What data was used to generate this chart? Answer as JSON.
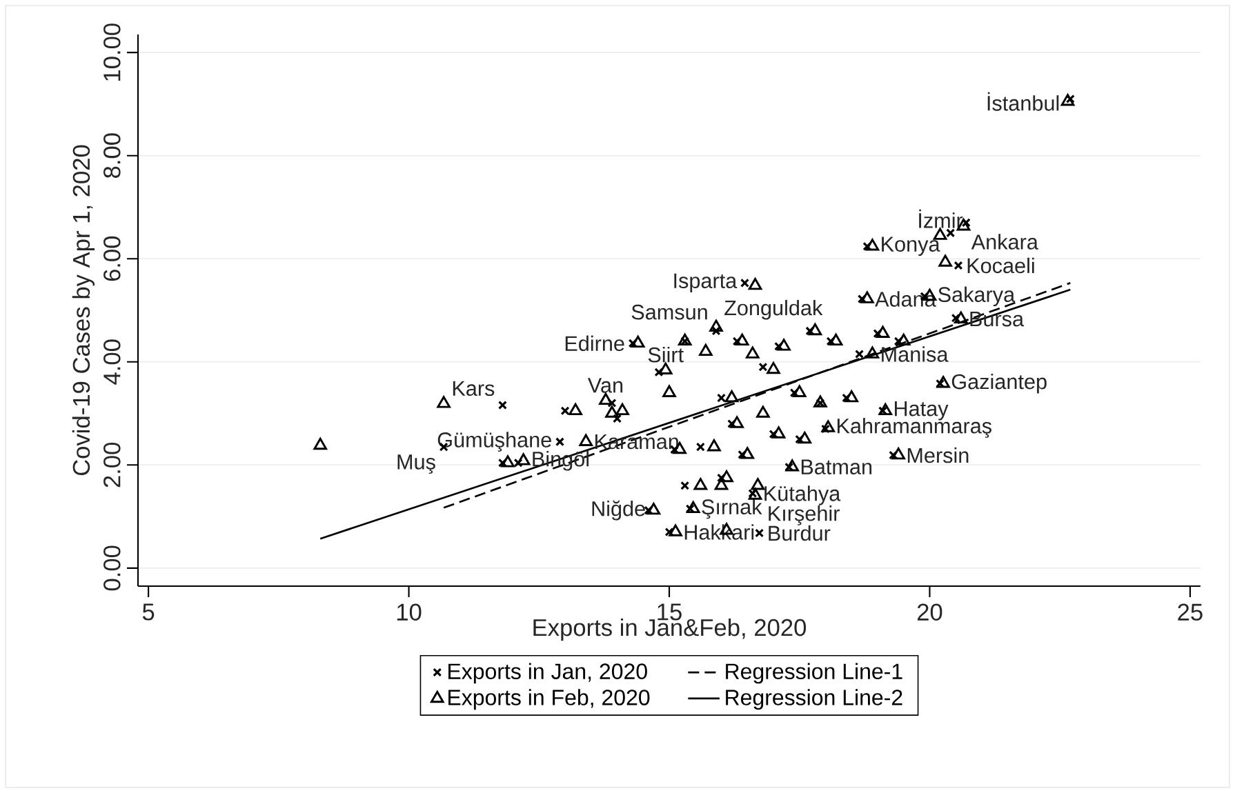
{
  "chart_data": {
    "type": "scatter",
    "xlabel": "Exports in Jan&Feb, 2020",
    "ylabel": "Covid-19 Cases by Apr 1, 2020",
    "xlim": [
      4.8,
      25.2
    ],
    "xticks": [
      5,
      10,
      15,
      20,
      25
    ],
    "ylim": [
      -0.35,
      10.35
    ],
    "yticks": [
      {
        "value": 0,
        "label": "0.00"
      },
      {
        "value": 2,
        "label": "2.00"
      },
      {
        "value": 4,
        "label": "4.00"
      },
      {
        "value": 6,
        "label": "6.00"
      },
      {
        "value": 8,
        "label": "8.00"
      },
      {
        "value": 10,
        "label": "10.00"
      }
    ],
    "grid": "y",
    "legend": "bottom",
    "series": [
      {
        "name": "Exports in Jan, 2020",
        "marker": "cross",
        "color": "#000000",
        "x": [
          10.67,
          11.8,
          11.8,
          12.1,
          12.9,
          13.0,
          13.9,
          14.0,
          14.3,
          14.6,
          14.8,
          15.0,
          15.1,
          15.3,
          15.4,
          15.3,
          15.6,
          15.9,
          16.0,
          16.0,
          16.2,
          16.3,
          16.4,
          16.45,
          16.6,
          16.73,
          16.8,
          17.0,
          17.1,
          17.3,
          17.4,
          17.5,
          17.7,
          17.9,
          18.0,
          18.1,
          18.4,
          18.7,
          18.8,
          18.65,
          19.0,
          19.1,
          19.3,
          19.4,
          19.9,
          20.2,
          20.4,
          20.55,
          20.7,
          20.5,
          22.7
        ],
        "values": [
          2.35,
          3.16,
          2.04,
          2.04,
          2.45,
          3.05,
          3.2,
          2.9,
          4.36,
          1.12,
          3.8,
          0.7,
          2.3,
          4.4,
          1.15,
          1.6,
          2.35,
          4.6,
          1.75,
          3.3,
          2.8,
          4.4,
          2.2,
          5.53,
          1.45,
          0.68,
          3.9,
          2.6,
          4.3,
          1.96,
          3.4,
          2.5,
          4.6,
          3.2,
          2.7,
          4.4,
          3.3,
          5.22,
          6.24,
          4.15,
          4.55,
          3.05,
          2.19,
          4.4,
          5.27,
          3.58,
          6.5,
          5.87,
          6.7,
          4.85,
          9.1
        ]
      },
      {
        "name": "Exports in Feb, 2020",
        "marker": "triangle",
        "color": "#000000",
        "x": [
          8.3,
          10.67,
          11.9,
          12.2,
          13.4,
          13.2,
          13.78,
          13.9,
          14.4,
          14.1,
          14.7,
          14.93,
          15.12,
          15.2,
          15.0,
          15.3,
          15.46,
          15.6,
          15.7,
          15.86,
          15.9,
          16.0,
          16.1,
          16.1,
          16.2,
          16.3,
          16.4,
          16.5,
          16.6,
          16.65,
          16.65,
          16.7,
          16.8,
          17.0,
          17.1,
          17.2,
          17.36,
          17.5,
          17.6,
          17.8,
          17.9,
          18.05,
          18.2,
          18.5,
          18.8,
          18.9,
          18.9,
          19.1,
          19.15,
          19.4,
          19.5,
          20.0,
          20.26,
          20.2,
          20.65,
          20.3,
          20.6,
          22.65
        ],
        "values": [
          2.38,
          3.19,
          2.04,
          2.08,
          2.45,
          3.05,
          3.25,
          3.0,
          4.36,
          3.05,
          1.12,
          3.84,
          0.7,
          2.3,
          3.4,
          4.4,
          1.15,
          1.6,
          4.2,
          2.35,
          4.67,
          1.6,
          0.73,
          1.75,
          3.3,
          2.8,
          4.4,
          2.2,
          4.15,
          5.48,
          1.41,
          1.6,
          3.0,
          3.85,
          2.6,
          4.3,
          1.96,
          3.4,
          2.5,
          4.6,
          3.2,
          2.72,
          4.4,
          3.3,
          5.22,
          6.24,
          4.15,
          4.55,
          3.05,
          2.19,
          4.4,
          5.27,
          3.58,
          6.45,
          6.63,
          5.93,
          4.83,
          9.05
        ]
      },
      {
        "name": "Regression Line-1",
        "type": "line",
        "line_style": "dashed",
        "color": "#000000",
        "x": [
          10.67,
          22.7
        ],
        "values": [
          1.17,
          5.53
        ]
      },
      {
        "name": "Regression Line-2",
        "type": "line",
        "line_style": "solid",
        "color": "#000000",
        "x": [
          8.3,
          22.7
        ],
        "values": [
          0.57,
          5.4
        ]
      }
    ],
    "annotations": [
      {
        "text": "İstanbul",
        "x": 22.65,
        "y": 9.05
      },
      {
        "text": "İzmir",
        "x": 20.2,
        "y": 6.45
      },
      {
        "text": "Ankara",
        "x": 20.65,
        "y": 6.63
      },
      {
        "text": "Konya",
        "x": 18.9,
        "y": 6.24
      },
      {
        "text": "Kocaeli",
        "x": 20.55,
        "y": 5.87
      },
      {
        "text": "Isparta",
        "x": 16.45,
        "y": 5.53
      },
      {
        "text": "Adana",
        "x": 18.8,
        "y": 5.22
      },
      {
        "text": "Sakarya",
        "x": 20.0,
        "y": 5.27
      },
      {
        "text": "Bursa",
        "x": 20.6,
        "y": 4.83
      },
      {
        "text": "Samsun",
        "x": 15.9,
        "y": 4.67
      },
      {
        "text": "Zonguldak",
        "x": 15.9,
        "y": 4.67
      },
      {
        "text": "Edirne",
        "x": 14.3,
        "y": 4.36
      },
      {
        "text": "Manisa",
        "x": 18.9,
        "y": 4.15
      },
      {
        "text": "Gaziantep",
        "x": 20.26,
        "y": 3.58
      },
      {
        "text": "Hatay",
        "x": 19.15,
        "y": 3.05
      },
      {
        "text": "Kahramanmaraş",
        "x": 18.05,
        "y": 2.72
      },
      {
        "text": "Mersin",
        "x": 19.4,
        "y": 2.19
      },
      {
        "text": "Batman",
        "x": 17.36,
        "y": 1.96
      },
      {
        "text": "Kütahya",
        "x": 16.65,
        "y": 1.41
      },
      {
        "text": "Kırşehir",
        "x": 16.73,
        "y": 0.68
      },
      {
        "text": "Burdur",
        "x": 16.73,
        "y": 0.68
      },
      {
        "text": "Hakkari",
        "x": 15.12,
        "y": 0.7
      },
      {
        "text": "Şırnak",
        "x": 15.46,
        "y": 1.15
      },
      {
        "text": "Niğde",
        "x": 14.7,
        "y": 1.12
      },
      {
        "text": "Muş",
        "x": 10.67,
        "y": 2.35
      },
      {
        "text": "Kars",
        "x": 10.67,
        "y": 3.19
      },
      {
        "text": "Van",
        "x": 13.78,
        "y": 3.25
      },
      {
        "text": "Siirt",
        "x": 14.93,
        "y": 3.84
      },
      {
        "text": "Gümüşhane",
        "x": 12.9,
        "y": 2.45
      },
      {
        "text": "Karaman",
        "x": 13.4,
        "y": 2.45
      },
      {
        "text": "Bingöl",
        "x": 12.2,
        "y": 2.08
      }
    ]
  }
}
